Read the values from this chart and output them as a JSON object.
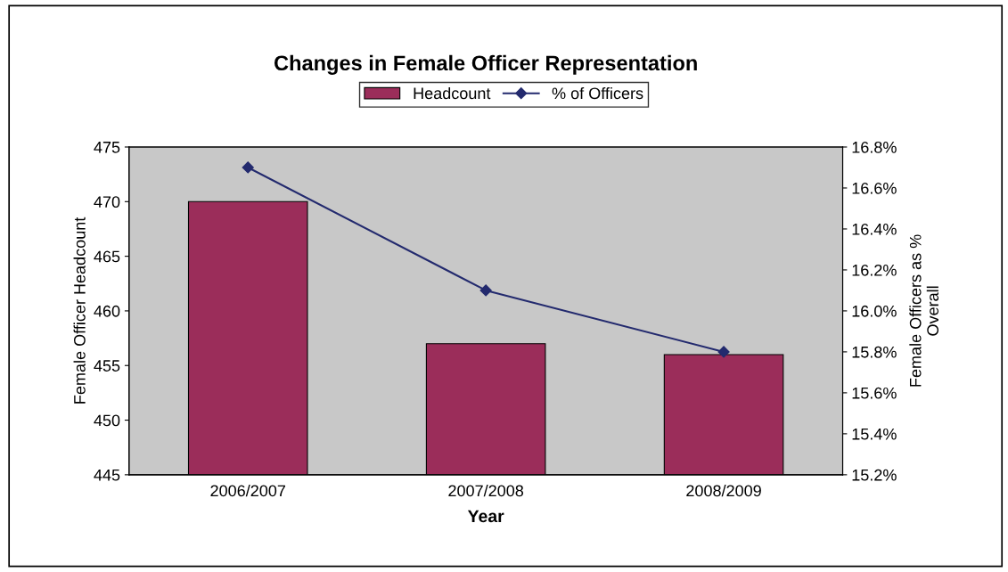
{
  "chart_data": {
    "type": "bar",
    "title": "Changes in Female Officer Representation",
    "xlabel": "Year",
    "ylabel": "Female Officer Headcount",
    "y2label": "Female Officers as %\nOverall",
    "categories": [
      "2006/2007",
      "2007/2008",
      "2008/2009"
    ],
    "series": [
      {
        "name": "Headcount",
        "color": "#9b2d5a",
        "values": [
          470,
          457,
          456
        ]
      },
      {
        "name": "% of Officers",
        "type": "line",
        "axis": "y2",
        "color": "#232a6e",
        "values": [
          16.7,
          16.1,
          15.8
        ],
        "marker": "diamond"
      }
    ],
    "ylim": [
      445,
      475
    ],
    "yticks": [
      445,
      450,
      455,
      460,
      465,
      470,
      475
    ],
    "y2lim": [
      15.2,
      16.8
    ],
    "y2ticks": [
      {
        "value": 15.2,
        "label": "15.2%"
      },
      {
        "value": 15.4,
        "label": "15.4%"
      },
      {
        "value": 15.6,
        "label": "15.6%"
      },
      {
        "value": 15.8,
        "label": "15.8%"
      },
      {
        "value": 16.0,
        "label": "16.0%"
      },
      {
        "value": 16.2,
        "label": "16.2%"
      },
      {
        "value": 16.4,
        "label": "16.4%"
      },
      {
        "value": 16.6,
        "label": "16.6%"
      },
      {
        "value": 16.8,
        "label": "16.8%"
      }
    ],
    "grid": false,
    "legend": "top"
  }
}
